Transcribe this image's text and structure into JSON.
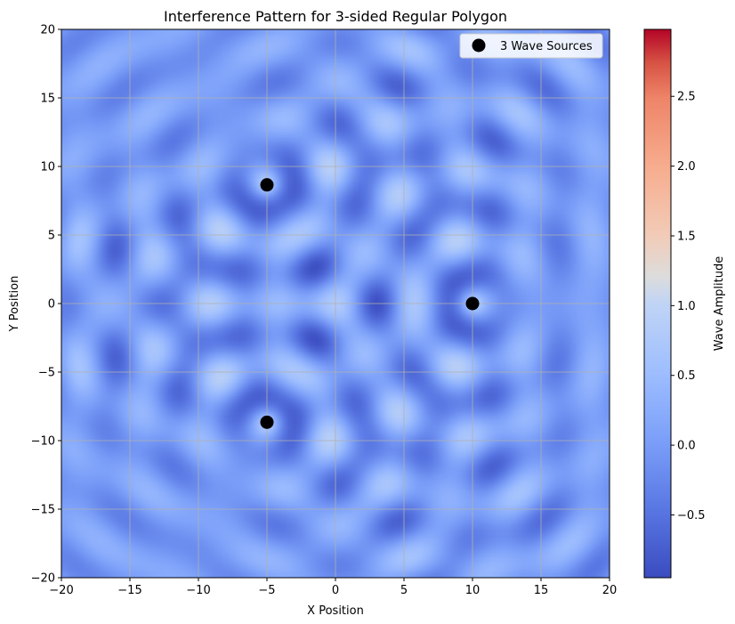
{
  "chart_data": {
    "type": "heatmap",
    "title": "Interference Pattern for 3-sided Regular Polygon",
    "xlabel": "X Position",
    "ylabel": "Y Position",
    "xlim": [
      -20,
      20
    ],
    "ylim": [
      -20,
      20
    ],
    "x_ticks": [
      "−20",
      "−15",
      "−10",
      "−5",
      "0",
      "5",
      "10",
      "15",
      "20"
    ],
    "x_tick_values": [
      -20,
      -15,
      -10,
      -5,
      0,
      5,
      10,
      15,
      20
    ],
    "y_ticks": [
      "−20",
      "−15",
      "−10",
      "−5",
      "0",
      "5",
      "10",
      "15",
      "20"
    ],
    "y_tick_values": [
      -20,
      -15,
      -10,
      -5,
      0,
      5,
      10,
      15,
      20
    ],
    "grid": true,
    "colormap": "coolwarm",
    "colorbar": {
      "label": "Wave Amplitude",
      "range": [
        -0.95,
        2.98
      ],
      "ticks": [
        "−0.5",
        "0.0",
        "0.5",
        "1.0",
        "1.5",
        "2.0",
        "2.5"
      ],
      "tick_values": [
        -0.5,
        0.0,
        0.5,
        1.0,
        1.5,
        2.0,
        2.5
      ]
    },
    "legend": {
      "label": "3 Wave Sources",
      "placement": "top-right"
    },
    "sources": [
      {
        "x": 10,
        "y": 0
      },
      {
        "x": -5,
        "y": 8.66
      },
      {
        "x": -5,
        "y": -8.66
      }
    ],
    "colors": {
      "marker": "#000000",
      "grid": "#b0b0b0",
      "cold": "#3b4cc0",
      "neutral": "#dddddd",
      "warm": "#b40426"
    }
  }
}
